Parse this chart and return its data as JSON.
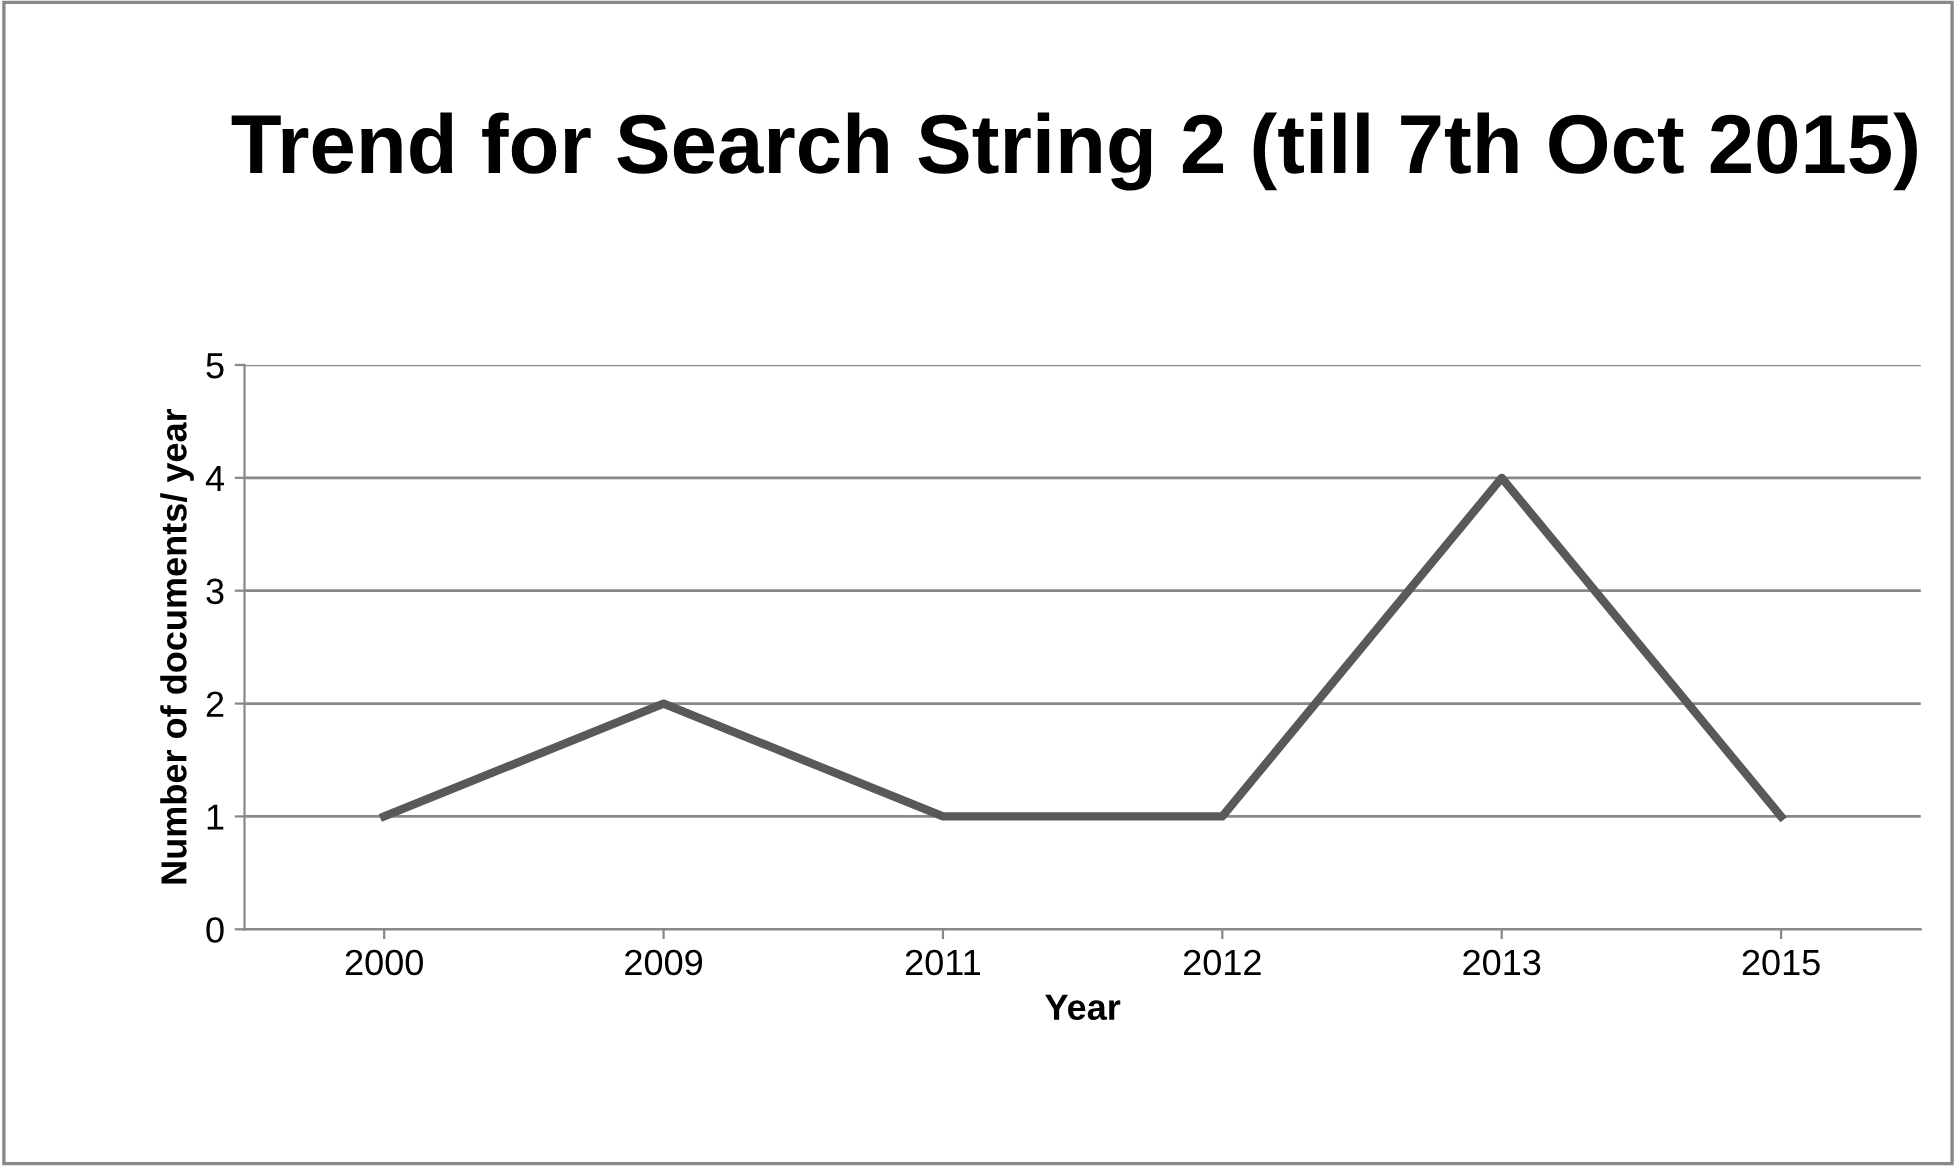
{
  "chart_data": {
    "type": "line",
    "title": "Trend for Search String 2 (till 7th Oct 2015)",
    "xlabel": "Year",
    "ylabel": "Number of documents/ year",
    "categories": [
      "2000",
      "2009",
      "2011",
      "2012",
      "2013",
      "2015"
    ],
    "series": [
      {
        "color": "#595959",
        "values": [
          1,
          2,
          1,
          1,
          4,
          1
        ]
      }
    ],
    "ylim": [
      0,
      5
    ],
    "yticks": [
      0,
      1,
      2,
      3,
      4,
      5
    ],
    "grid": "y",
    "legend": false,
    "marker": "none",
    "line_style": "solid"
  }
}
